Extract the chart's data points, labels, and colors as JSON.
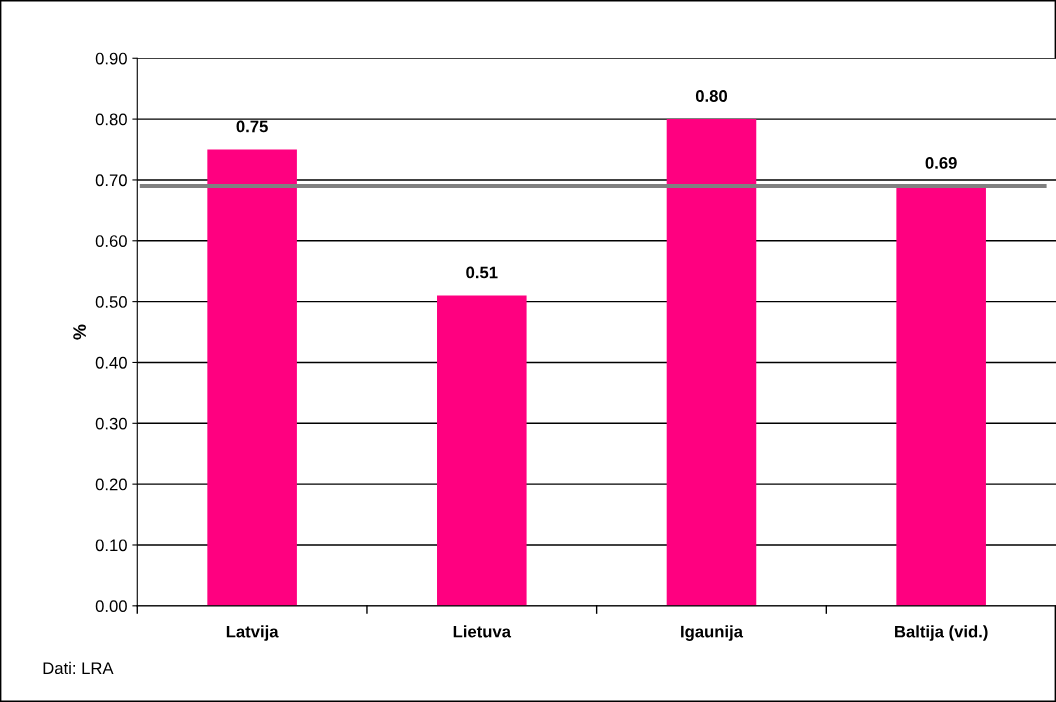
{
  "chart_data": {
    "type": "bar",
    "ylabel": "%",
    "categories": [
      "Latvija",
      "Lietuva",
      "Igaunija",
      "Baltija (vid.)"
    ],
    "values": [
      0.75,
      0.51,
      0.8,
      0.69
    ],
    "value_labels": [
      "0.75",
      "0.51",
      "0.80",
      "0.69"
    ],
    "color": "#ff0080",
    "ylim": [
      0,
      0.9
    ],
    "yticks": [
      {
        "value": 0,
        "label": "0.00"
      },
      {
        "value": 0.1,
        "label": "0.10"
      },
      {
        "value": 0.2,
        "label": "0.20"
      },
      {
        "value": 0.3,
        "label": "0.30"
      },
      {
        "value": 0.4,
        "label": "0.40"
      },
      {
        "value": 0.5,
        "label": "0.50"
      },
      {
        "value": 0.6,
        "label": "0.60"
      },
      {
        "value": 0.7,
        "label": "0.70"
      },
      {
        "value": 0.8,
        "label": "0.80"
      },
      {
        "value": 0.9,
        "label": "0.90"
      }
    ],
    "grid": "y",
    "ref_lines": [
      {
        "axis": "y",
        "value": 0.69,
        "label": null,
        "color": "#808080"
      }
    ],
    "annotations": [
      "Dati: LRA"
    ]
  }
}
